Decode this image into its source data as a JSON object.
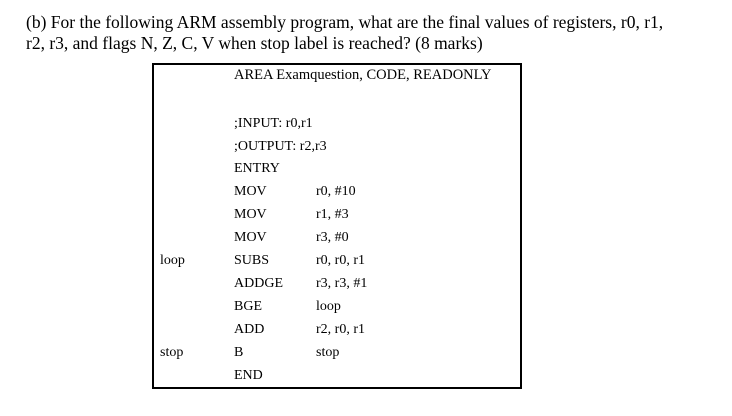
{
  "question": {
    "line1": "(b) For the following ARM assembly program, what are the final values of registers, r0, r1,",
    "line2": "r2, r3, and flags N, Z, C, V when stop label is reached? (8 marks)"
  },
  "code": {
    "header": "AREA Examquestion, CODE, READONLY",
    "input_comment": ";INPUT: r0,r1",
    "output_comment": ";OUTPUT: r2,r3",
    "entry": "ENTRY",
    "rows": [
      {
        "label": "",
        "op": "MOV",
        "args": "r0, #10"
      },
      {
        "label": "",
        "op": "MOV",
        "args": "r1, #3"
      },
      {
        "label": "",
        "op": "MOV",
        "args": "r3, #0"
      },
      {
        "label": "loop",
        "op": "SUBS",
        "args": "r0, r0, r1"
      },
      {
        "label": "",
        "op": "ADDGE",
        "args": "r3, r3, #1"
      },
      {
        "label": "",
        "op": "BGE",
        "args": "loop"
      },
      {
        "label": "",
        "op": "ADD",
        "args": "r2, r0, r1"
      },
      {
        "label": "stop",
        "op": "B",
        "args": "stop"
      }
    ],
    "end": "END"
  }
}
